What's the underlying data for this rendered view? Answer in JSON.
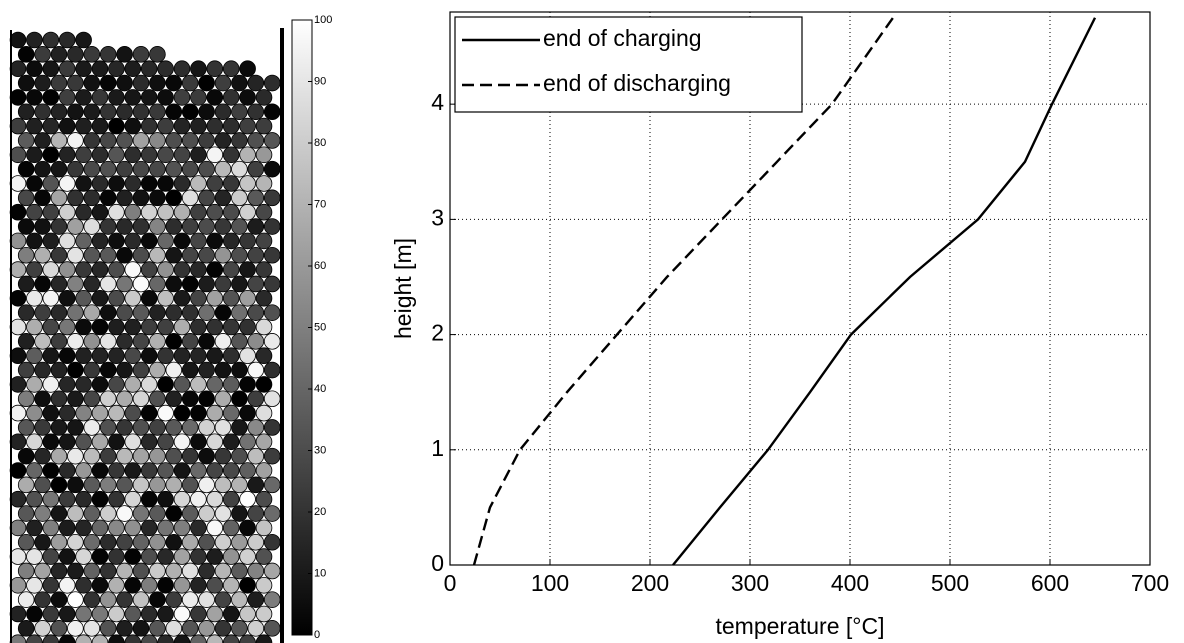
{
  "chart_data": [
    {
      "type": "colorbar",
      "ylim": [
        0,
        100
      ],
      "yticks": [
        0,
        10,
        20,
        30,
        40,
        50,
        60,
        70,
        80,
        90,
        100
      ],
      "colors": [
        "#000000",
        "#ffffff"
      ]
    },
    {
      "type": "line",
      "xlabel": "temperature [°C]",
      "ylabel": "height [m]",
      "xlim": [
        0,
        700
      ],
      "xticks": [
        0,
        100,
        200,
        300,
        400,
        500,
        600,
        700
      ],
      "ylim": [
        0,
        4.8
      ],
      "yticks": [
        0,
        1,
        2,
        3,
        4
      ],
      "grid": true,
      "legend": "upper-left",
      "series": [
        {
          "name": "end of charging",
          "color": "#000000",
          "dash": "solid",
          "x": [
            223,
            270,
            318,
            360,
            401,
            460,
            528,
            575,
            602,
            645
          ],
          "values": [
            0,
            0.5,
            1,
            1.5,
            2,
            2.5,
            3,
            3.5,
            4,
            4.75
          ]
        },
        {
          "name": "end of discharging",
          "color": "#000000",
          "dash": "dashed",
          "x": [
            24,
            40,
            70,
            117,
            167,
            217,
            272,
            327,
            382,
            443
          ],
          "values": [
            0,
            0.5,
            1,
            1.5,
            2,
            2.5,
            3,
            3.5,
            4,
            4.75
          ]
        }
      ]
    }
  ]
}
